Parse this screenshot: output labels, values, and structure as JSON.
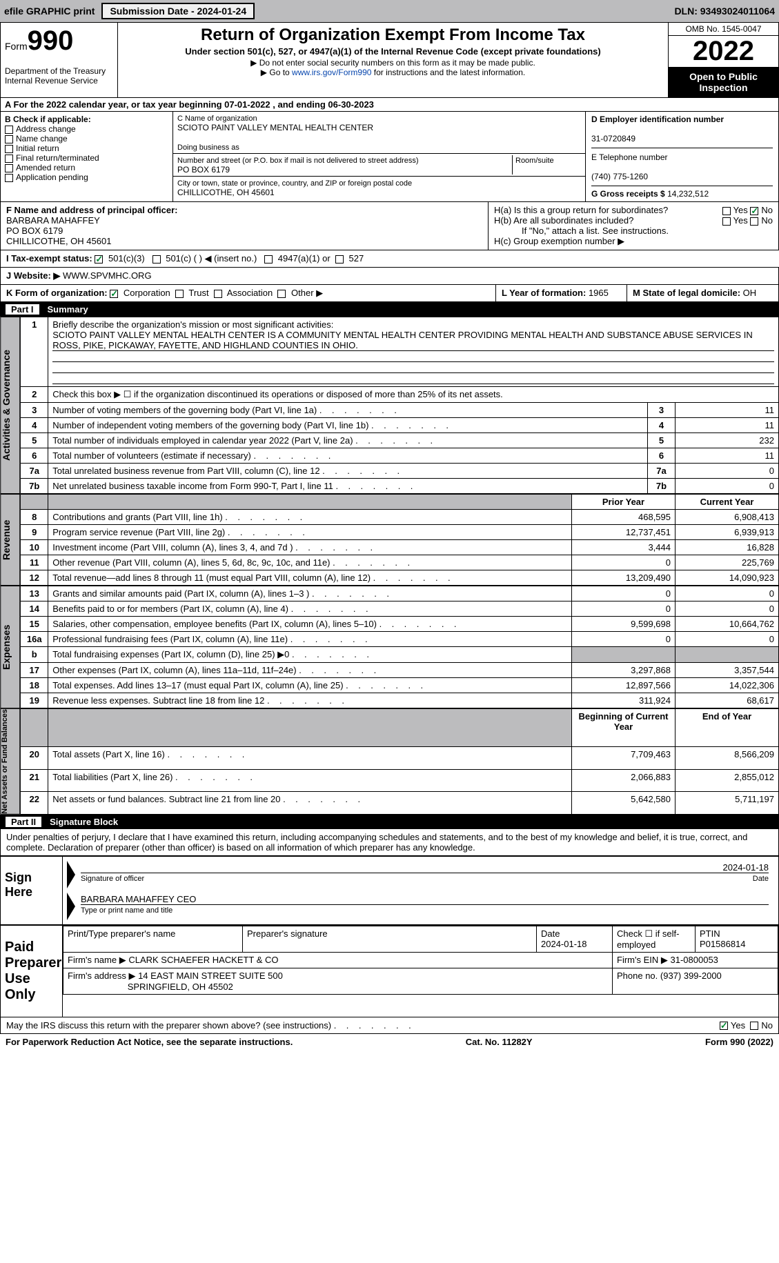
{
  "topbar": {
    "efile": "efile GRAPHIC print",
    "sub_label": "Submission Date - 2024-01-24",
    "dln": "DLN: 93493024011064"
  },
  "header": {
    "form": "Form",
    "num": "990",
    "dept": "Department of the Treasury",
    "irs": "Internal Revenue Service",
    "title": "Return of Organization Exempt From Income Tax",
    "sub1": "Under section 501(c), 527, or 4947(a)(1) of the Internal Revenue Code (except private foundations)",
    "sub2": "▶ Do not enter social security numbers on this form as it may be made public.",
    "sub3": "▶ Go to www.irs.gov/Form990 for instructions and the latest information.",
    "link": "www.irs.gov/Form990",
    "omb": "OMB No. 1545-0047",
    "year": "2022",
    "open": "Open to Public Inspection"
  },
  "A": {
    "text": "A For the 2022 calendar year, or tax year beginning 07-01-2022    , and ending 06-30-2023"
  },
  "B": {
    "lbl": "B Check if applicable:",
    "opts": [
      "Address change",
      "Name change",
      "Initial return",
      "Final return/terminated",
      "Amended return",
      "Application pending"
    ]
  },
  "C": {
    "name_lbl": "C Name of organization",
    "name": "SCIOTO PAINT VALLEY MENTAL HEALTH CENTER",
    "dba_lbl": "Doing business as",
    "addr_lbl": "Number and street (or P.O. box if mail is not delivered to street address)",
    "room_lbl": "Room/suite",
    "addr": "PO BOX 6179",
    "city_lbl": "City or town, state or province, country, and ZIP or foreign postal code",
    "city": "CHILLICOTHE, OH  45601"
  },
  "D": {
    "lbl": "D Employer identification number",
    "val": "31-0720849"
  },
  "E": {
    "lbl": "E Telephone number",
    "val": "(740) 775-1260"
  },
  "G": {
    "lbl": "G Gross receipts $ ",
    "val": "14,232,512"
  },
  "F": {
    "lbl": "F  Name and address of principal officer:",
    "name": "BARBARA MAHAFFEY",
    "addr": "PO BOX 6179",
    "city": "CHILLICOTHE, OH  45601"
  },
  "H": {
    "a": "H(a)  Is this a group return for subordinates?",
    "b": "H(b)  Are all subordinates included?",
    "note": "If \"No,\" attach a list. See instructions.",
    "c": "H(c)  Group exemption number ▶"
  },
  "I": {
    "lbl": "I    Tax-exempt status:",
    "o1": "501(c)(3)",
    "o2": "501(c) (  ) ◀ (insert no.)",
    "o3": "4947(a)(1) or",
    "o4": "527"
  },
  "J": {
    "lbl": "J    Website: ▶",
    "val": "WWW.SPVMHC.ORG"
  },
  "K": {
    "lbl": "K Form of organization:",
    "opts": [
      "Corporation",
      "Trust",
      "Association",
      "Other ▶"
    ]
  },
  "L": {
    "lbl": "L Year of formation: ",
    "val": "1965"
  },
  "M": {
    "lbl": "M State of legal domicile: ",
    "val": "OH"
  },
  "part1": {
    "num": "Part I",
    "title": "Summary",
    "l1": "Briefly describe the organization's mission or most significant activities:",
    "mission": "SCIOTO PAINT VALLEY MENTAL HEALTH CENTER IS A COMMUNITY MENTAL HEALTH CENTER PROVIDING MENTAL HEALTH AND SUBSTANCE ABUSE SERVICES IN ROSS, PIKE, PICKAWAY, FAYETTE, AND HIGHLAND COUNTIES IN OHIO.",
    "l2": "Check this box ▶ ☐ if the organization discontinued its operations or disposed of more than 25% of its net assets.",
    "rows_ag": [
      {
        "n": "3",
        "t": "Number of voting members of the governing body (Part VI, line 1a)",
        "v": "11"
      },
      {
        "n": "4",
        "t": "Number of independent voting members of the governing body (Part VI, line 1b)",
        "v": "11"
      },
      {
        "n": "5",
        "t": "Total number of individuals employed in calendar year 2022 (Part V, line 2a)",
        "v": "232"
      },
      {
        "n": "6",
        "t": "Total number of volunteers (estimate if necessary)",
        "v": "11"
      },
      {
        "n": "7a",
        "t": "Total unrelated business revenue from Part VIII, column (C), line 12",
        "v": "0"
      },
      {
        "n": "7b",
        "t": "Net unrelated business taxable income from Form 990-T, Part I, line 11",
        "v": "0"
      }
    ],
    "hdr_py": "Prior Year",
    "hdr_cy": "Current Year",
    "rows_rev": [
      {
        "n": "8",
        "t": "Contributions and grants (Part VIII, line 1h)",
        "py": "468,595",
        "cy": "6,908,413"
      },
      {
        "n": "9",
        "t": "Program service revenue (Part VIII, line 2g)",
        "py": "12,737,451",
        "cy": "6,939,913"
      },
      {
        "n": "10",
        "t": "Investment income (Part VIII, column (A), lines 3, 4, and 7d )",
        "py": "3,444",
        "cy": "16,828"
      },
      {
        "n": "11",
        "t": "Other revenue (Part VIII, column (A), lines 5, 6d, 8c, 9c, 10c, and 11e)",
        "py": "0",
        "cy": "225,769"
      },
      {
        "n": "12",
        "t": "Total revenue—add lines 8 through 11 (must equal Part VIII, column (A), line 12)",
        "py": "13,209,490",
        "cy": "14,090,923"
      }
    ],
    "rows_exp": [
      {
        "n": "13",
        "t": "Grants and similar amounts paid (Part IX, column (A), lines 1–3 )",
        "py": "0",
        "cy": "0"
      },
      {
        "n": "14",
        "t": "Benefits paid to or for members (Part IX, column (A), line 4)",
        "py": "0",
        "cy": "0"
      },
      {
        "n": "15",
        "t": "Salaries, other compensation, employee benefits (Part IX, column (A), lines 5–10)",
        "py": "9,599,698",
        "cy": "10,664,762"
      },
      {
        "n": "16a",
        "t": "Professional fundraising fees (Part IX, column (A), line 11e)",
        "py": "0",
        "cy": "0"
      },
      {
        "n": "b",
        "t": "Total fundraising expenses (Part IX, column (D), line 25) ▶0",
        "py": "",
        "cy": "",
        "grey": true
      },
      {
        "n": "17",
        "t": "Other expenses (Part IX, column (A), lines 11a–11d, 11f–24e)",
        "py": "3,297,868",
        "cy": "3,357,544"
      },
      {
        "n": "18",
        "t": "Total expenses. Add lines 13–17 (must equal Part IX, column (A), line 25)",
        "py": "12,897,566",
        "cy": "14,022,306"
      },
      {
        "n": "19",
        "t": "Revenue less expenses. Subtract line 18 from line 12",
        "py": "311,924",
        "cy": "68,617"
      }
    ],
    "hdr_boy": "Beginning of Current Year",
    "hdr_eoy": "End of Year",
    "rows_na": [
      {
        "n": "20",
        "t": "Total assets (Part X, line 16)",
        "py": "7,709,463",
        "cy": "8,566,209"
      },
      {
        "n": "21",
        "t": "Total liabilities (Part X, line 26)",
        "py": "2,066,883",
        "cy": "2,855,012"
      },
      {
        "n": "22",
        "t": "Net assets or fund balances. Subtract line 21 from line 20",
        "py": "5,642,580",
        "cy": "5,711,197"
      }
    ],
    "side_ag": "Activities & Governance",
    "side_rev": "Revenue",
    "side_exp": "Expenses",
    "side_na": "Net Assets or Fund Balances"
  },
  "part2": {
    "num": "Part II",
    "title": "Signature Block",
    "decl": "Under penalties of perjury, I declare that I have examined this return, including accompanying schedules and statements, and to the best of my knowledge and belief, it is true, correct, and complete. Declaration of preparer (other than officer) is based on all information of which preparer has any knowledge.",
    "sign_here": "Sign Here",
    "sig_of": "Signature of officer",
    "date": "Date",
    "date_v": "2024-01-18",
    "name": "BARBARA MAHAFFEY CEO",
    "name_lbl": "Type or print name and title",
    "paid": "Paid Preparer Use Only",
    "prep_name_lbl": "Print/Type preparer's name",
    "prep_sig_lbl": "Preparer's signature",
    "prep_date_lbl": "Date",
    "prep_date": "2024-01-18",
    "chk_lbl": "Check ☐ if self-employed",
    "ptin_lbl": "PTIN",
    "ptin": "P01586814",
    "firm_name_lbl": "Firm's name     ▶",
    "firm_name": "CLARK SCHAEFER HACKETT & CO",
    "firm_ein_lbl": "Firm's EIN ▶",
    "firm_ein": "31-0800053",
    "firm_addr_lbl": "Firm's address ▶",
    "firm_addr": "14 EAST MAIN STREET SUITE 500",
    "firm_city": "SPRINGFIELD, OH  45502",
    "phone_lbl": "Phone no. ",
    "phone": "(937) 399-2000",
    "discuss": "May the IRS discuss this return with the preparer shown above? (see instructions)"
  },
  "footer": {
    "l": "For Paperwork Reduction Act Notice, see the separate instructions.",
    "c": "Cat. No. 11282Y",
    "r": "Form 990 (2022)"
  },
  "yesno": {
    "yes": "Yes",
    "no": "No"
  }
}
